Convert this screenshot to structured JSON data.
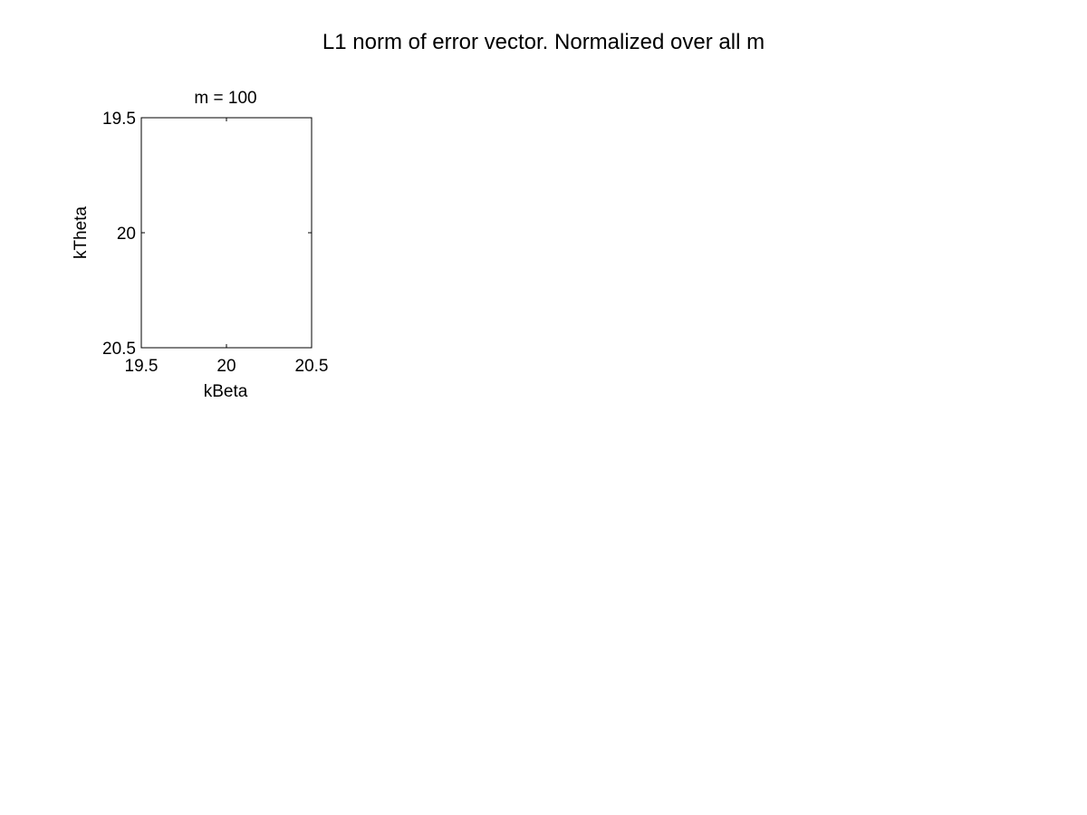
{
  "figure": {
    "title": "L1 norm of error vector. Normalized over all m"
  },
  "chart_data": {
    "type": "heatmap",
    "title": "m = 100",
    "xlabel": "kBeta",
    "ylabel": "kTheta",
    "xlim": [
      19.5,
      20.5
    ],
    "ylim": [
      19.5,
      20.5
    ],
    "y_reversed": true,
    "x_ticks": [
      19.5,
      20,
      20.5
    ],
    "y_ticks": [
      19.5,
      20,
      20.5
    ],
    "x_tick_labels": [
      "19.5",
      "20",
      "20.5"
    ],
    "y_tick_labels": [
      "19.5",
      "20",
      "20.5"
    ],
    "grid": false,
    "values": [],
    "colors": {
      "axes": "#000000",
      "background": "#ffffff"
    }
  }
}
